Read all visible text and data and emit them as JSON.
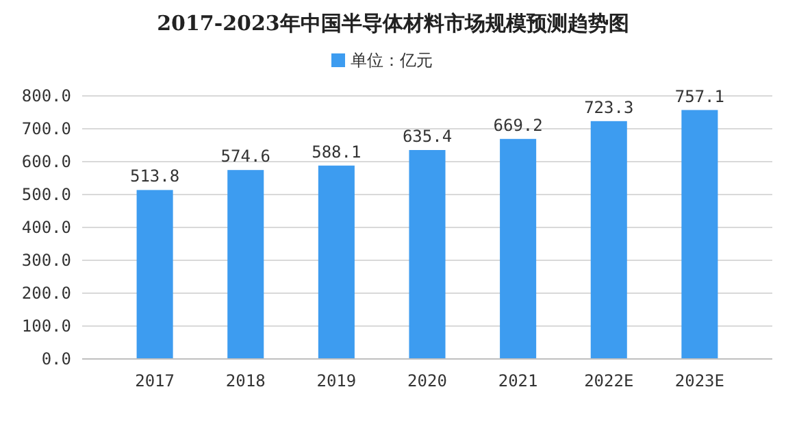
{
  "chart_data": {
    "type": "bar",
    "title": "2017-2023年中国半导体材料市场规模预测趋势图",
    "categories": [
      "2017",
      "2018",
      "2019",
      "2020",
      "2021",
      "2022E",
      "2023E"
    ],
    "series": [
      {
        "name": "单位：亿元",
        "color": "#3d9cf0",
        "values": [
          513.8,
          574.6,
          588.1,
          635.4,
          669.2,
          723.3,
          757.1
        ]
      }
    ],
    "ylim": [
      0,
      800
    ],
    "yticks": [
      {
        "value": 0,
        "label": "0.0"
      },
      {
        "value": 100,
        "label": "100.0"
      },
      {
        "value": 200,
        "label": "200.0"
      },
      {
        "value": 300,
        "label": "300.0"
      },
      {
        "value": 400,
        "label": "400.0"
      },
      {
        "value": 500,
        "label": "500.0"
      },
      {
        "value": 600,
        "label": "600.0"
      },
      {
        "value": 700,
        "label": "700.0"
      },
      {
        "value": 800,
        "label": "800.0"
      }
    ],
    "grid": "y",
    "legend": "top",
    "data_labels": true
  }
}
